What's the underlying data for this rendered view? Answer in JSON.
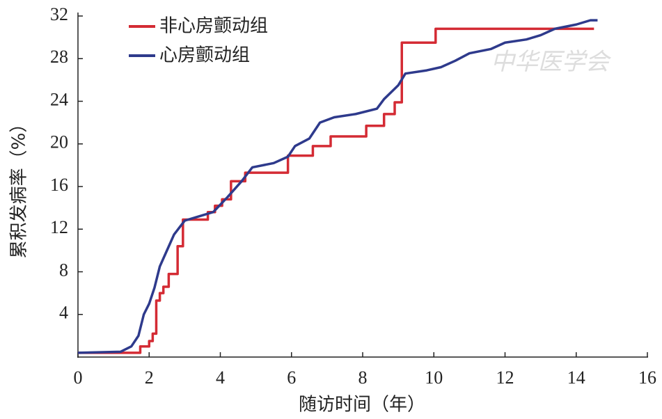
{
  "chart_data": {
    "type": "line",
    "xlabel": "随访时间（年）",
    "ylabel": "累积发病率（%）",
    "watermark": "中华医学会",
    "xlim": [
      0,
      16
    ],
    "xticks": [
      0,
      2,
      4,
      6,
      8,
      10,
      12,
      14,
      16
    ],
    "ylim": [
      0,
      32
    ],
    "yticks": [
      4,
      8,
      12,
      16,
      20,
      24,
      28,
      32
    ],
    "legend": "upper left",
    "series": [
      {
        "name": "非心房颤动组",
        "color": "#d42b34",
        "step": "post",
        "x": [
          0,
          1.75,
          2.0,
          2.1,
          2.2,
          2.3,
          2.4,
          2.55,
          2.8,
          2.95,
          3.65,
          3.85,
          4.05,
          4.3,
          4.7,
          5.9,
          6.6,
          7.1,
          8.1,
          8.6,
          8.9,
          9.1,
          10.05,
          14.5
        ],
        "values": [
          0.4,
          1.0,
          1.5,
          2.2,
          5.3,
          6.0,
          6.6,
          7.8,
          10.4,
          12.9,
          13.6,
          14.2,
          14.8,
          16.5,
          17.3,
          18.9,
          19.8,
          20.7,
          21.7,
          22.8,
          23.9,
          29.5,
          30.8,
          30.8
        ]
      },
      {
        "name": "心房颤动组",
        "color": "#2e3a8c",
        "x": [
          0,
          1.2,
          1.5,
          1.7,
          1.85,
          2.0,
          2.15,
          2.3,
          2.5,
          2.7,
          3.0,
          3.5,
          3.8,
          4.2,
          4.6,
          4.9,
          5.5,
          5.9,
          6.1,
          6.5,
          6.8,
          7.2,
          7.8,
          8.4,
          8.6,
          9.0,
          9.2,
          9.8,
          10.2,
          10.6,
          11.0,
          11.6,
          12.0,
          12.6,
          13.0,
          13.4,
          14.0,
          14.4,
          14.6
        ],
        "values": [
          0.4,
          0.5,
          1.0,
          2.0,
          4.0,
          5.0,
          6.5,
          8.5,
          10.0,
          11.5,
          12.8,
          13.3,
          13.6,
          15.0,
          16.5,
          17.8,
          18.2,
          18.8,
          19.8,
          20.5,
          22.0,
          22.5,
          22.8,
          23.3,
          24.2,
          25.5,
          26.6,
          26.9,
          27.2,
          27.8,
          28.5,
          28.9,
          29.5,
          29.8,
          30.2,
          30.8,
          31.2,
          31.6,
          31.6
        ]
      }
    ]
  }
}
